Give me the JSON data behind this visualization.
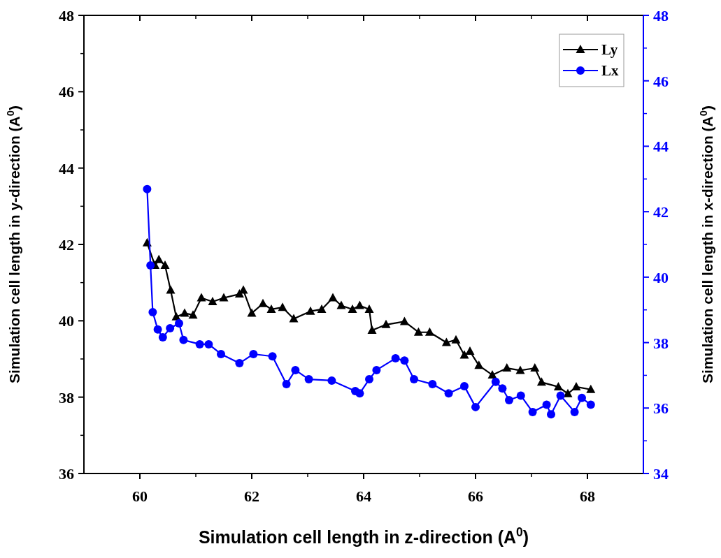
{
  "chart_data": {
    "type": "line",
    "xlabel": "Simulation cell length in z-direction (A$^{0}$)",
    "ylabel": "Simulation cell length in y-direction (A$^{0}$)",
    "y2label": "Simulation cell length in x-direction (A$^{0}$)",
    "xlim": [
      59,
      69
    ],
    "xticks": [
      60,
      62,
      64,
      66,
      68
    ],
    "ylim": [
      36,
      48
    ],
    "yticks": [
      36,
      38,
      40,
      42,
      44,
      46,
      48
    ],
    "y2lim": [
      34,
      48
    ],
    "y2ticks": [
      34,
      36,
      38,
      40,
      42,
      44,
      46,
      48
    ],
    "grid": false,
    "legend": "top right",
    "line_style": "solid",
    "series": [
      {
        "name": "Ly",
        "color": "#000000",
        "marker": "triangle",
        "x": [
          60.13,
          60.27,
          60.34,
          60.45,
          60.55,
          60.65,
          60.8,
          60.95,
          61.1,
          61.3,
          61.5,
          61.78,
          61.85,
          62.0,
          62.2,
          62.35,
          62.55,
          62.75,
          63.05,
          63.25,
          63.45,
          63.6,
          63.8,
          63.93,
          64.1,
          64.15,
          64.4,
          64.73,
          64.98,
          65.18,
          65.48,
          65.65,
          65.8,
          65.9,
          66.06,
          66.3,
          66.56,
          66.8,
          67.06,
          67.18,
          67.48,
          67.65,
          67.8,
          68.06
        ],
        "values": [
          42.04,
          41.45,
          41.6,
          41.45,
          40.8,
          40.1,
          40.2,
          40.15,
          40.6,
          40.5,
          40.6,
          40.7,
          40.8,
          40.2,
          40.45,
          40.3,
          40.35,
          40.05,
          40.25,
          40.3,
          40.6,
          40.4,
          40.3,
          40.4,
          40.3,
          39.75,
          39.9,
          39.98,
          39.7,
          39.7,
          39.43,
          39.5,
          39.1,
          39.2,
          38.83,
          38.58,
          38.76,
          38.7,
          38.76,
          38.39,
          38.27,
          38.09,
          38.27,
          38.2
        ]
      },
      {
        "name": "Lx",
        "color": "#0000ff",
        "marker": "circle",
        "axis": "y2",
        "x": [
          60.13,
          60.19,
          60.23,
          60.32,
          60.41,
          60.54,
          60.7,
          60.78,
          61.07,
          61.23,
          61.45,
          61.78,
          62.03,
          62.37,
          62.62,
          62.78,
          63.02,
          63.43,
          63.85,
          63.93,
          64.1,
          64.23,
          64.57,
          64.73,
          64.9,
          65.23,
          65.52,
          65.8,
          66.0,
          66.36,
          66.48,
          66.6,
          66.81,
          67.02,
          67.27,
          67.35,
          67.52,
          67.77,
          67.9,
          68.06
        ],
        "values": [
          42.69,
          40.36,
          38.93,
          38.4,
          38.16,
          38.44,
          38.59,
          38.08,
          37.95,
          37.95,
          37.65,
          37.37,
          37.65,
          37.58,
          36.73,
          37.16,
          36.88,
          36.84,
          36.52,
          36.45,
          36.88,
          37.16,
          37.52,
          37.45,
          36.88,
          36.73,
          36.45,
          36.67,
          36.03,
          36.8,
          36.6,
          36.24,
          36.38,
          35.88,
          36.1,
          35.81,
          36.38,
          35.88,
          36.31,
          36.1
        ]
      }
    ]
  }
}
